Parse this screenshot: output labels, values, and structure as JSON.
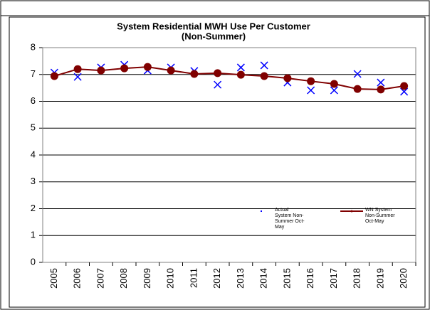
{
  "chart_data": {
    "type": "line",
    "title": "System Residential MWH Use Per Customer",
    "subtitle": "(Non-Summer)",
    "categories": [
      "2005",
      "2006",
      "2007",
      "2008",
      "2009",
      "2010",
      "2011",
      "2012",
      "2013",
      "2014",
      "2015",
      "2016",
      "2017",
      "2018",
      "2019",
      "2020"
    ],
    "series": [
      {
        "name": "Actual System Non-Summer Oct-May",
        "color": "#0000ff",
        "marker": "x",
        "line": false,
        "values": [
          7.07,
          6.91,
          7.26,
          7.36,
          7.15,
          7.26,
          7.13,
          6.62,
          7.26,
          7.34,
          6.7,
          6.41,
          6.41,
          7.02,
          6.7,
          6.36
        ]
      },
      {
        "name": "WN System Non-Summer Oct-May",
        "color": "#800000",
        "marker": "circle",
        "line": true,
        "values": [
          6.94,
          7.2,
          7.15,
          7.23,
          7.28,
          7.15,
          7.02,
          7.05,
          6.99,
          6.94,
          6.86,
          6.75,
          6.65,
          6.46,
          6.44,
          6.57
        ]
      }
    ],
    "ylim": [
      0,
      8
    ],
    "yticks": [
      0,
      1,
      2,
      3,
      4,
      5,
      6,
      7,
      8
    ],
    "grid": true
  }
}
